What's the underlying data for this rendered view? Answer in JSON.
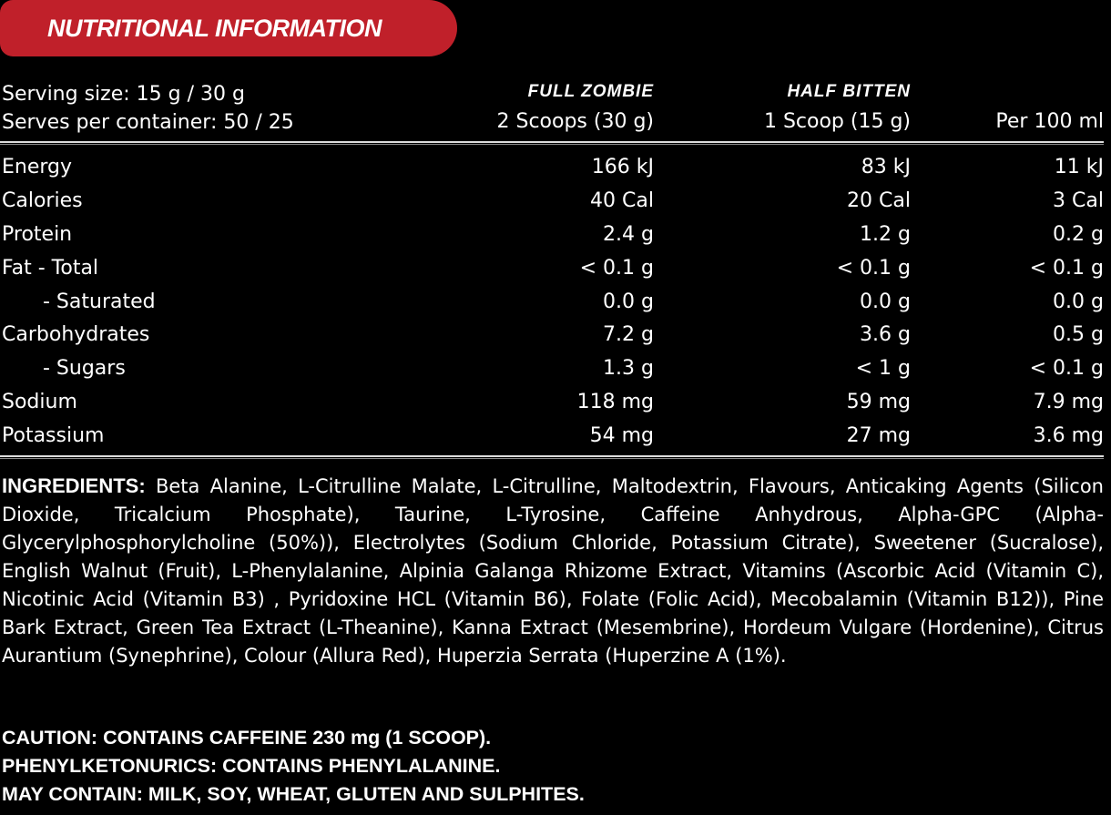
{
  "title": "NUTRITIONAL INFORMATION",
  "serving": {
    "size": "Serving size: 15 g / 30 g",
    "per_container": "Serves per container: 50 / 25"
  },
  "columns": [
    {
      "brand": "FULL ZOMBIE",
      "label": "2 Scoops (30 g)"
    },
    {
      "brand": "HALF BITTEN",
      "label": "1 Scoop (15 g)"
    },
    {
      "brand": "",
      "label": "Per 100 ml"
    }
  ],
  "rows": [
    {
      "label": "Energy",
      "indent": false,
      "values": [
        "166 kJ",
        "83 kJ",
        "11 kJ"
      ]
    },
    {
      "label": "Calories",
      "indent": false,
      "values": [
        "40 Cal",
        "20 Cal",
        "3 Cal"
      ]
    },
    {
      "label": "Protein",
      "indent": false,
      "values": [
        "2.4 g",
        "1.2 g",
        "0.2 g"
      ]
    },
    {
      "label": "Fat  - Total",
      "indent": false,
      "values": [
        "< 0.1 g",
        "< 0.1 g",
        "< 0.1 g"
      ]
    },
    {
      "label": "- Saturated",
      "indent": true,
      "values": [
        "0.0 g",
        "0.0 g",
        "0.0 g"
      ]
    },
    {
      "label": "Carbohydrates",
      "indent": false,
      "values": [
        "7.2 g",
        "3.6 g",
        "0.5 g"
      ]
    },
    {
      "label": "- Sugars",
      "indent": true,
      "values": [
        "1.3 g",
        "< 1 g",
        "< 0.1 g"
      ]
    },
    {
      "label": "Sodium",
      "indent": false,
      "values": [
        "118 mg",
        "59 mg",
        "7.9 mg"
      ]
    },
    {
      "label": "Potassium",
      "indent": false,
      "values": [
        "54 mg",
        "27 mg",
        "3.6 mg"
      ]
    }
  ],
  "ingredients": {
    "heading": "INGREDIENTS:",
    "text": "Beta Alanine, L-Citrulline Malate, L-Citrulline, Maltodextrin, Flavours, Anticaking Agents (Silicon Dioxide, Tricalcium Phosphate), Taurine, L-Tyrosine, Caffeine Anhydrous, Alpha-GPC (Alpha-Glycerylphosphorylcholine (50%)), Electrolytes (Sodium Chloride, Potassium Citrate), Sweetener (Sucralose), English Walnut (Fruit), L-Phenylalanine, Alpinia Galanga Rhizome Extract, Vitamins (Ascorbic Acid (Vitamin C), Nicotinic Acid (Vitamin B3) , Pyridoxine HCL (Vitamin B6), Folate (Folic Acid), Mecobalamin (Vitamin B12)), Pine Bark Extract, Green Tea Extract (L-Theanine), Kanna Extract (Mesembrine), Hordeum Vulgare (Hordenine), Citrus Aurantium (Synephrine), Colour (Allura Red), Huperzia Serrata (Huperzine A (1%)."
  },
  "warnings": [
    "CAUTION: CONTAINS CAFFEINE 230 mg (1 SCOOP).",
    "PHENYLKETONURICS: CONTAINS PHENYLALANINE.",
    "MAY CONTAIN: MILK, SOY, WHEAT, GLUTEN AND SULPHITES."
  ],
  "colors": {
    "accent": "#c0202a",
    "background": "#000000",
    "text": "#ffffff"
  }
}
